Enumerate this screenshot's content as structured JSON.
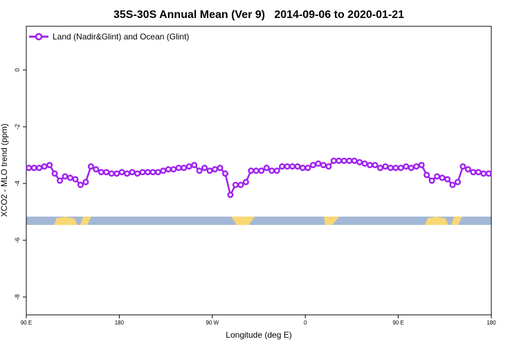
{
  "chart_data": {
    "type": "line",
    "title": "35S-30S Annual Mean (Ver 9)   2014-09-06 to 2020-01-21",
    "xlabel": "Longitude (deg E)",
    "ylabel": "XCO2 - MLO trend (ppm)",
    "xlim": [
      90,
      540
    ],
    "xticks": [
      {
        "value": 90,
        "label": "90 E"
      },
      180,
      {
        "value": 270,
        "label": "90 W"
      },
      {
        "value": 360,
        "label": "0"
      },
      {
        "value": 450,
        "label": "90 E"
      },
      {
        "value": 540,
        "label": "180"
      }
    ],
    "ylim": [
      -8.63,
      1.54
    ],
    "yticks": [
      0,
      -2,
      -4,
      -6,
      -8
    ],
    "legend": "top-left",
    "x": [
      92.5,
      97.5,
      102.5,
      107.5,
      112.5,
      117.5,
      122.5,
      127.5,
      132.5,
      137.5,
      142.5,
      147.5,
      152.5,
      157.5,
      162.5,
      167.5,
      172.5,
      177.5,
      182.5,
      187.5,
      192.5,
      197.5,
      202.5,
      207.5,
      212.5,
      217.5,
      222.5,
      227.5,
      232.5,
      237.5,
      242.5,
      247.5,
      252.5,
      257.5,
      262.5,
      267.5,
      272.5,
      277.5,
      282.5,
      287.5,
      292.5,
      297.5,
      302.5,
      307.5,
      312.5,
      317.5,
      322.5,
      327.5,
      332.5,
      337.5,
      342.5,
      347.5,
      352.5,
      357.5,
      362.5,
      367.5,
      372.5,
      377.5,
      382.5,
      387.5,
      392.5,
      397.5,
      402.5,
      407.5,
      412.5,
      417.5,
      422.5,
      427.5,
      432.5,
      437.5,
      442.5,
      447.5,
      452.5,
      457.5,
      462.5,
      467.5,
      472.5,
      477.5,
      482.5,
      487.5,
      492.5,
      497.5,
      502.5,
      507.5,
      512.5,
      517.5,
      522.5,
      527.5,
      532.5,
      537.5
    ],
    "series": [
      {
        "name": "Land (Nadir&Glint) and Ocean (Glint)",
        "color": "#a020f0",
        "values": [
          -3.45,
          -3.45,
          -3.45,
          -3.4,
          -3.35,
          -3.65,
          -3.9,
          -3.75,
          -3.8,
          -3.85,
          -4.05,
          -3.95,
          -3.4,
          -3.5,
          -3.6,
          -3.6,
          -3.65,
          -3.65,
          -3.6,
          -3.65,
          -3.6,
          -3.65,
          -3.6,
          -3.6,
          -3.6,
          -3.6,
          -3.55,
          -3.5,
          -3.5,
          -3.45,
          -3.45,
          -3.4,
          -3.35,
          -3.55,
          -3.45,
          -3.55,
          -3.5,
          -3.45,
          -3.65,
          -4.4,
          -4.05,
          -4.05,
          -3.95,
          -3.55,
          -3.55,
          -3.55,
          -3.45,
          -3.55,
          -3.55,
          -3.4,
          -3.4,
          -3.4,
          -3.4,
          -3.45,
          -3.45,
          -3.35,
          -3.3,
          -3.35,
          -3.4,
          -3.2,
          -3.2,
          -3.2,
          -3.2,
          -3.2,
          -3.25,
          -3.3,
          -3.35,
          -3.35,
          -3.45,
          -3.4,
          -3.45,
          -3.45,
          -3.45,
          -3.4,
          -3.45,
          -3.4,
          -3.35,
          -3.7,
          -3.9,
          -3.75,
          -3.8,
          -3.85,
          -4.05,
          -3.95,
          -3.4,
          -3.5,
          -3.6,
          -3.6,
          -3.65,
          -3.65
        ]
      }
    ]
  }
}
